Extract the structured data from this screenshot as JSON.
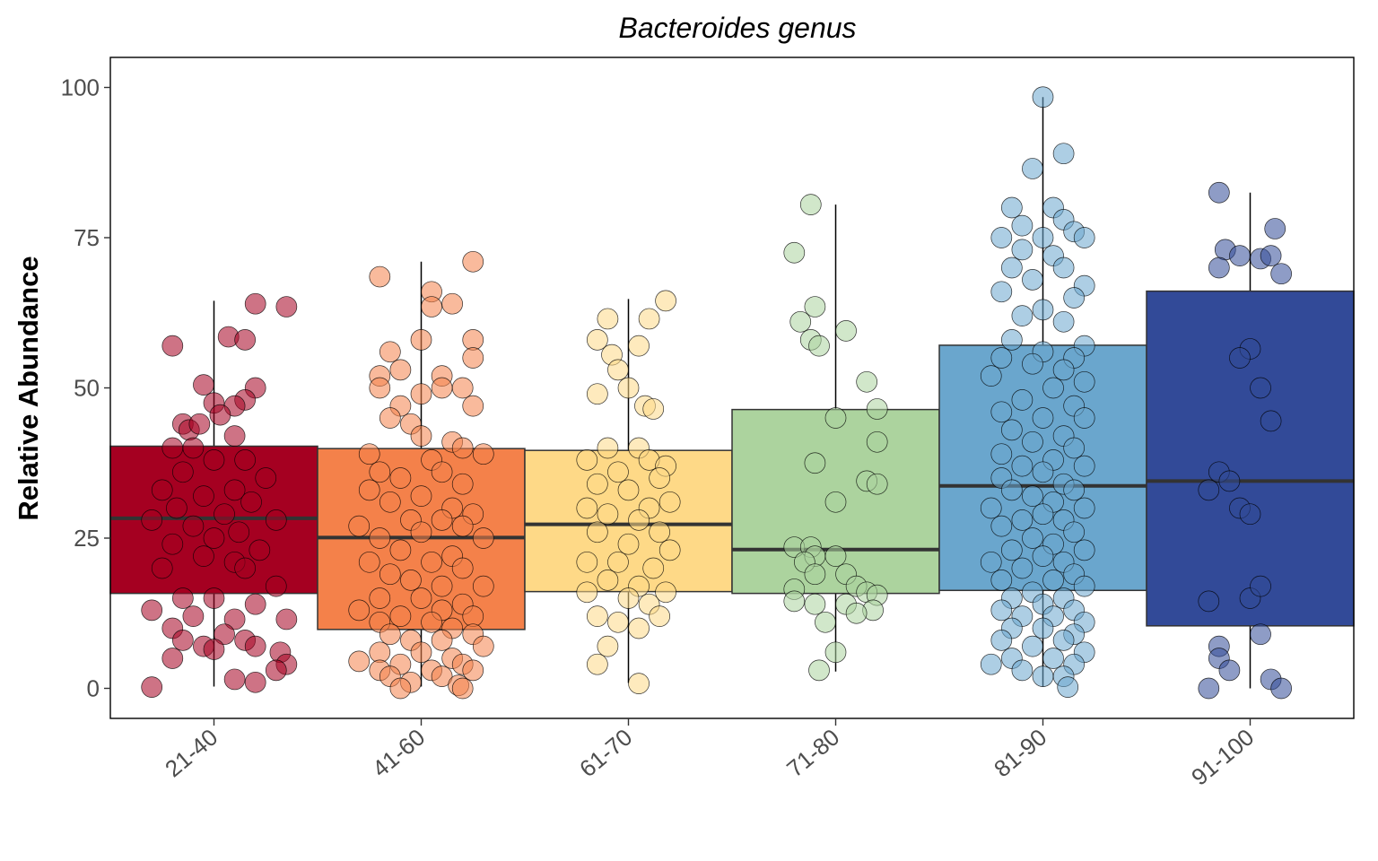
{
  "chart_data": {
    "type": "box",
    "title": "Bacteroides genus",
    "xlabel": "",
    "ylabel": "Relative Abundance",
    "ylim": [
      -5,
      105
    ],
    "yticks": [
      0,
      25,
      50,
      75,
      100
    ],
    "grid": false,
    "categories": [
      "21-40",
      "41-60",
      "61-70",
      "71-80",
      "81-90",
      "91-100"
    ],
    "colors": [
      "#a50021",
      "#f4814a",
      "#fed987",
      "#acd39e",
      "#6aa6cd",
      "#324a98"
    ],
    "boxes": [
      {
        "min": 0.3,
        "q1": 15.8,
        "median": 28.3,
        "q3": 40.3,
        "max": 64.5
      },
      {
        "min": 0.3,
        "q1": 9.8,
        "median": 25.1,
        "q3": 39.9,
        "max": 71.0
      },
      {
        "min": 0.9,
        "q1": 16.1,
        "median": 27.3,
        "q3": 39.6,
        "max": 64.8
      },
      {
        "min": 2.8,
        "q1": 15.8,
        "median": 23.1,
        "q3": 46.4,
        "max": 80.5
      },
      {
        "min": 0.3,
        "q1": 16.3,
        "median": 33.7,
        "q3": 57.1,
        "max": 98.4
      },
      {
        "min": 0.0,
        "q1": 10.4,
        "median": 34.5,
        "q3": 66.1,
        "max": 82.5
      }
    ],
    "points": [
      [
        [
          -0.2,
          57
        ],
        [
          0.35,
          63.5
        ],
        [
          0.2,
          64
        ],
        [
          0.07,
          58.5
        ],
        [
          0.15,
          58
        ],
        [
          -0.05,
          50.5
        ],
        [
          0.2,
          50
        ],
        [
          0.15,
          48
        ],
        [
          0.1,
          47
        ],
        [
          0.0,
          47.5
        ],
        [
          0.03,
          45.5
        ],
        [
          -0.15,
          44
        ],
        [
          -0.12,
          43
        ],
        [
          -0.07,
          44
        ],
        [
          0.1,
          42
        ],
        [
          -0.1,
          40
        ],
        [
          -0.2,
          40
        ],
        [
          0.0,
          38
        ],
        [
          0.15,
          38
        ],
        [
          -0.15,
          36
        ],
        [
          0.25,
          35
        ],
        [
          -0.25,
          33
        ],
        [
          0.1,
          33
        ],
        [
          -0.05,
          32
        ],
        [
          0.18,
          31
        ],
        [
          -0.18,
          30
        ],
        [
          0.05,
          29
        ],
        [
          -0.3,
          28
        ],
        [
          0.3,
          28
        ],
        [
          -0.1,
          27
        ],
        [
          0.12,
          26
        ],
        [
          0.0,
          25
        ],
        [
          -0.2,
          24
        ],
        [
          0.22,
          23
        ],
        [
          -0.05,
          22
        ],
        [
          0.1,
          21
        ],
        [
          -0.25,
          20
        ],
        [
          0.15,
          20
        ],
        [
          0.3,
          17
        ],
        [
          -0.15,
          15
        ],
        [
          0.0,
          15
        ],
        [
          0.2,
          14
        ],
        [
          -0.3,
          13
        ],
        [
          -0.1,
          12
        ],
        [
          0.1,
          11.5
        ],
        [
          0.35,
          11.5
        ],
        [
          -0.2,
          10
        ],
        [
          0.05,
          9
        ],
        [
          -0.15,
          8
        ],
        [
          0.15,
          8
        ],
        [
          -0.05,
          7
        ],
        [
          0.2,
          7
        ],
        [
          0.32,
          6
        ],
        [
          0.0,
          6.5
        ],
        [
          -0.2,
          5
        ],
        [
          0.35,
          4
        ],
        [
          0.3,
          3
        ],
        [
          0.1,
          1.5
        ],
        [
          0.2,
          1
        ],
        [
          -0.3,
          0.2
        ]
      ],
      [
        [
          -0.2,
          68.5
        ],
        [
          0.25,
          71
        ],
        [
          0.05,
          66
        ],
        [
          0.15,
          64
        ],
        [
          0.05,
          63.5
        ],
        [
          0.25,
          58
        ],
        [
          0.0,
          58
        ],
        [
          -0.15,
          56
        ],
        [
          0.25,
          55
        ],
        [
          -0.1,
          53
        ],
        [
          -0.2,
          52
        ],
        [
          0.1,
          52
        ],
        [
          -0.2,
          50
        ],
        [
          0.0,
          49
        ],
        [
          0.1,
          50
        ],
        [
          0.2,
          50
        ],
        [
          -0.1,
          47
        ],
        [
          0.25,
          47
        ],
        [
          -0.15,
          45
        ],
        [
          -0.05,
          44
        ],
        [
          0.0,
          42
        ],
        [
          0.15,
          41
        ],
        [
          0.2,
          40
        ],
        [
          -0.25,
          39
        ],
        [
          0.05,
          38
        ],
        [
          0.3,
          39
        ],
        [
          -0.2,
          36
        ],
        [
          0.1,
          36
        ],
        [
          -0.1,
          35
        ],
        [
          0.2,
          34
        ],
        [
          -0.25,
          33
        ],
        [
          0.0,
          32
        ],
        [
          -0.15,
          31
        ],
        [
          0.15,
          30
        ],
        [
          0.25,
          29
        ],
        [
          -0.05,
          28
        ],
        [
          0.1,
          28
        ],
        [
          -0.3,
          27
        ],
        [
          0.2,
          27
        ],
        [
          0.0,
          26
        ],
        [
          -0.2,
          25
        ],
        [
          0.3,
          25
        ],
        [
          -0.1,
          23
        ],
        [
          0.15,
          22
        ],
        [
          -0.25,
          21
        ],
        [
          0.05,
          21
        ],
        [
          0.2,
          20
        ],
        [
          -0.15,
          19
        ],
        [
          -0.05,
          18
        ],
        [
          0.1,
          17
        ],
        [
          0.3,
          17
        ],
        [
          -0.2,
          15
        ],
        [
          0.0,
          15
        ],
        [
          0.2,
          14
        ],
        [
          -0.3,
          13
        ],
        [
          0.1,
          13
        ],
        [
          -0.1,
          12
        ],
        [
          0.25,
          12
        ],
        [
          -0.2,
          11
        ],
        [
          0.05,
          11
        ],
        [
          0.15,
          10
        ],
        [
          -0.15,
          9
        ],
        [
          0.25,
          9
        ],
        [
          -0.05,
          8
        ],
        [
          0.1,
          8
        ],
        [
          0.3,
          7
        ],
        [
          -0.2,
          6
        ],
        [
          0.0,
          6
        ],
        [
          0.15,
          5
        ],
        [
          -0.3,
          4.5
        ],
        [
          -0.1,
          4
        ],
        [
          0.2,
          4
        ],
        [
          -0.2,
          3
        ],
        [
          0.05,
          3
        ],
        [
          0.25,
          3
        ],
        [
          -0.15,
          2
        ],
        [
          0.1,
          2
        ],
        [
          -0.05,
          1
        ],
        [
          0.18,
          0.5
        ],
        [
          -0.1,
          0
        ],
        [
          0.2,
          0
        ]
      ],
      [
        [
          0.18,
          64.5
        ],
        [
          0.1,
          61.5
        ],
        [
          -0.1,
          61.5
        ],
        [
          -0.15,
          58
        ],
        [
          0.05,
          57
        ],
        [
          -0.08,
          55.5
        ],
        [
          -0.05,
          53
        ],
        [
          -0.15,
          49
        ],
        [
          0.08,
          47
        ],
        [
          0.12,
          46.5
        ],
        [
          0.0,
          50
        ],
        [
          -0.1,
          40
        ],
        [
          0.05,
          40
        ],
        [
          -0.2,
          38
        ],
        [
          0.1,
          38
        ],
        [
          0.18,
          37
        ],
        [
          -0.05,
          36
        ],
        [
          0.15,
          35
        ],
        [
          -0.15,
          34
        ],
        [
          0.0,
          33
        ],
        [
          0.2,
          31
        ],
        [
          -0.2,
          30
        ],
        [
          0.1,
          30
        ],
        [
          -0.1,
          29
        ],
        [
          0.05,
          28
        ],
        [
          -0.15,
          26
        ],
        [
          0.15,
          26
        ],
        [
          0.0,
          24
        ],
        [
          0.2,
          23
        ],
        [
          -0.2,
          21
        ],
        [
          -0.05,
          21
        ],
        [
          0.12,
          20
        ],
        [
          -0.1,
          18
        ],
        [
          0.05,
          17
        ],
        [
          0.18,
          16
        ],
        [
          -0.2,
          16
        ],
        [
          0.0,
          15
        ],
        [
          0.1,
          14
        ],
        [
          -0.15,
          12
        ],
        [
          0.15,
          12
        ],
        [
          -0.05,
          11
        ],
        [
          0.05,
          10
        ],
        [
          -0.1,
          7
        ],
        [
          -0.15,
          4
        ],
        [
          0.05,
          0.8
        ]
      ],
      [
        [
          -0.12,
          80.5
        ],
        [
          -0.2,
          72.5
        ],
        [
          -0.1,
          63.5
        ],
        [
          -0.17,
          61
        ],
        [
          -0.12,
          58
        ],
        [
          0.05,
          59.5
        ],
        [
          -0.08,
          57
        ],
        [
          0.15,
          51
        ],
        [
          0.0,
          45
        ],
        [
          0.2,
          46.5
        ],
        [
          0.2,
          41
        ],
        [
          -0.1,
          37.5
        ],
        [
          0.15,
          34.5
        ],
        [
          0.2,
          34
        ],
        [
          0.0,
          31
        ],
        [
          -0.2,
          23.5
        ],
        [
          -0.12,
          23.5
        ],
        [
          -0.1,
          22
        ],
        [
          0.0,
          22
        ],
        [
          -0.15,
          21
        ],
        [
          -0.1,
          19
        ],
        [
          0.05,
          19
        ],
        [
          0.1,
          17
        ],
        [
          -0.2,
          16.5
        ],
        [
          0.15,
          16
        ],
        [
          0.2,
          15.5
        ],
        [
          -0.2,
          14.5
        ],
        [
          -0.1,
          14
        ],
        [
          0.05,
          14
        ],
        [
          0.18,
          13
        ],
        [
          0.1,
          12.5
        ],
        [
          -0.05,
          11
        ],
        [
          0.0,
          6
        ],
        [
          -0.08,
          3
        ]
      ],
      [
        [
          0.0,
          98.4
        ],
        [
          0.1,
          89
        ],
        [
          -0.05,
          86.5
        ],
        [
          0.05,
          80
        ],
        [
          -0.15,
          80
        ],
        [
          0.1,
          78
        ],
        [
          -0.1,
          77
        ],
        [
          0.15,
          76
        ],
        [
          -0.2,
          75
        ],
        [
          0.2,
          75
        ],
        [
          0.0,
          75
        ],
        [
          -0.1,
          73
        ],
        [
          0.05,
          72
        ],
        [
          -0.15,
          70
        ],
        [
          0.1,
          70
        ],
        [
          -0.05,
          68
        ],
        [
          0.2,
          67
        ],
        [
          -0.2,
          66
        ],
        [
          0.15,
          65
        ],
        [
          0.0,
          63
        ],
        [
          -0.1,
          62
        ],
        [
          0.1,
          61
        ],
        [
          -0.15,
          58
        ],
        [
          0.2,
          57
        ],
        [
          0.0,
          56
        ],
        [
          -0.2,
          55
        ],
        [
          0.15,
          55
        ],
        [
          -0.05,
          54
        ],
        [
          0.1,
          53
        ],
        [
          -0.25,
          52
        ],
        [
          0.2,
          51
        ],
        [
          0.05,
          50
        ],
        [
          -0.1,
          48
        ],
        [
          0.15,
          47
        ],
        [
          -0.2,
          46
        ],
        [
          0.0,
          45
        ],
        [
          0.2,
          45
        ],
        [
          -0.15,
          43
        ],
        [
          0.1,
          42
        ],
        [
          -0.05,
          41
        ],
        [
          0.15,
          40
        ],
        [
          -0.2,
          39
        ],
        [
          0.05,
          38
        ],
        [
          -0.1,
          37
        ],
        [
          0.2,
          37
        ],
        [
          0.0,
          36
        ],
        [
          -0.2,
          35
        ],
        [
          0.1,
          34
        ],
        [
          -0.15,
          33
        ],
        [
          0.15,
          33
        ],
        [
          -0.05,
          32
        ],
        [
          0.05,
          31
        ],
        [
          -0.25,
          30
        ],
        [
          0.2,
          30
        ],
        [
          0.0,
          29
        ],
        [
          -0.1,
          28
        ],
        [
          0.1,
          28
        ],
        [
          -0.2,
          27
        ],
        [
          0.15,
          26
        ],
        [
          -0.05,
          25
        ],
        [
          0.05,
          24
        ],
        [
          -0.15,
          23
        ],
        [
          0.2,
          23
        ],
        [
          0.0,
          22
        ],
        [
          -0.25,
          21
        ],
        [
          0.1,
          21
        ],
        [
          -0.1,
          20
        ],
        [
          0.15,
          19
        ],
        [
          -0.2,
          18
        ],
        [
          0.05,
          18
        ],
        [
          0.2,
          17
        ],
        [
          -0.05,
          16
        ],
        [
          -0.15,
          15
        ],
        [
          0.1,
          15
        ],
        [
          0.0,
          14
        ],
        [
          -0.2,
          13
        ],
        [
          0.15,
          13
        ],
        [
          -0.1,
          12
        ],
        [
          0.05,
          12
        ],
        [
          0.2,
          11
        ],
        [
          -0.15,
          10
        ],
        [
          0.0,
          10
        ],
        [
          0.15,
          9
        ],
        [
          -0.2,
          8
        ],
        [
          0.1,
          8
        ],
        [
          -0.05,
          7
        ],
        [
          0.2,
          6
        ],
        [
          -0.15,
          5
        ],
        [
          0.05,
          5
        ],
        [
          -0.25,
          4
        ],
        [
          0.15,
          4
        ],
        [
          -0.1,
          3
        ],
        [
          0.0,
          2
        ],
        [
          0.1,
          2
        ],
        [
          0.12,
          0.2
        ]
      ],
      [
        [
          -0.15,
          82.5
        ],
        [
          0.12,
          76.5
        ],
        [
          -0.12,
          73
        ],
        [
          -0.05,
          72
        ],
        [
          0.05,
          71.5
        ],
        [
          -0.15,
          70
        ],
        [
          0.1,
          72
        ],
        [
          0.15,
          69
        ],
        [
          -0.2,
          33
        ],
        [
          -0.15,
          36
        ],
        [
          -0.1,
          34.5
        ],
        [
          0.0,
          56.5
        ],
        [
          -0.05,
          55
        ],
        [
          0.05,
          50
        ],
        [
          0.1,
          44.5
        ],
        [
          -0.05,
          30
        ],
        [
          0.0,
          29
        ],
        [
          -0.2,
          14.5
        ],
        [
          0.0,
          15
        ],
        [
          0.05,
          17
        ],
        [
          -0.15,
          7
        ],
        [
          0.05,
          9
        ],
        [
          -0.15,
          5
        ],
        [
          -0.1,
          3
        ],
        [
          0.1,
          1.5
        ],
        [
          0.15,
          0
        ],
        [
          -0.2,
          0
        ]
      ]
    ]
  }
}
